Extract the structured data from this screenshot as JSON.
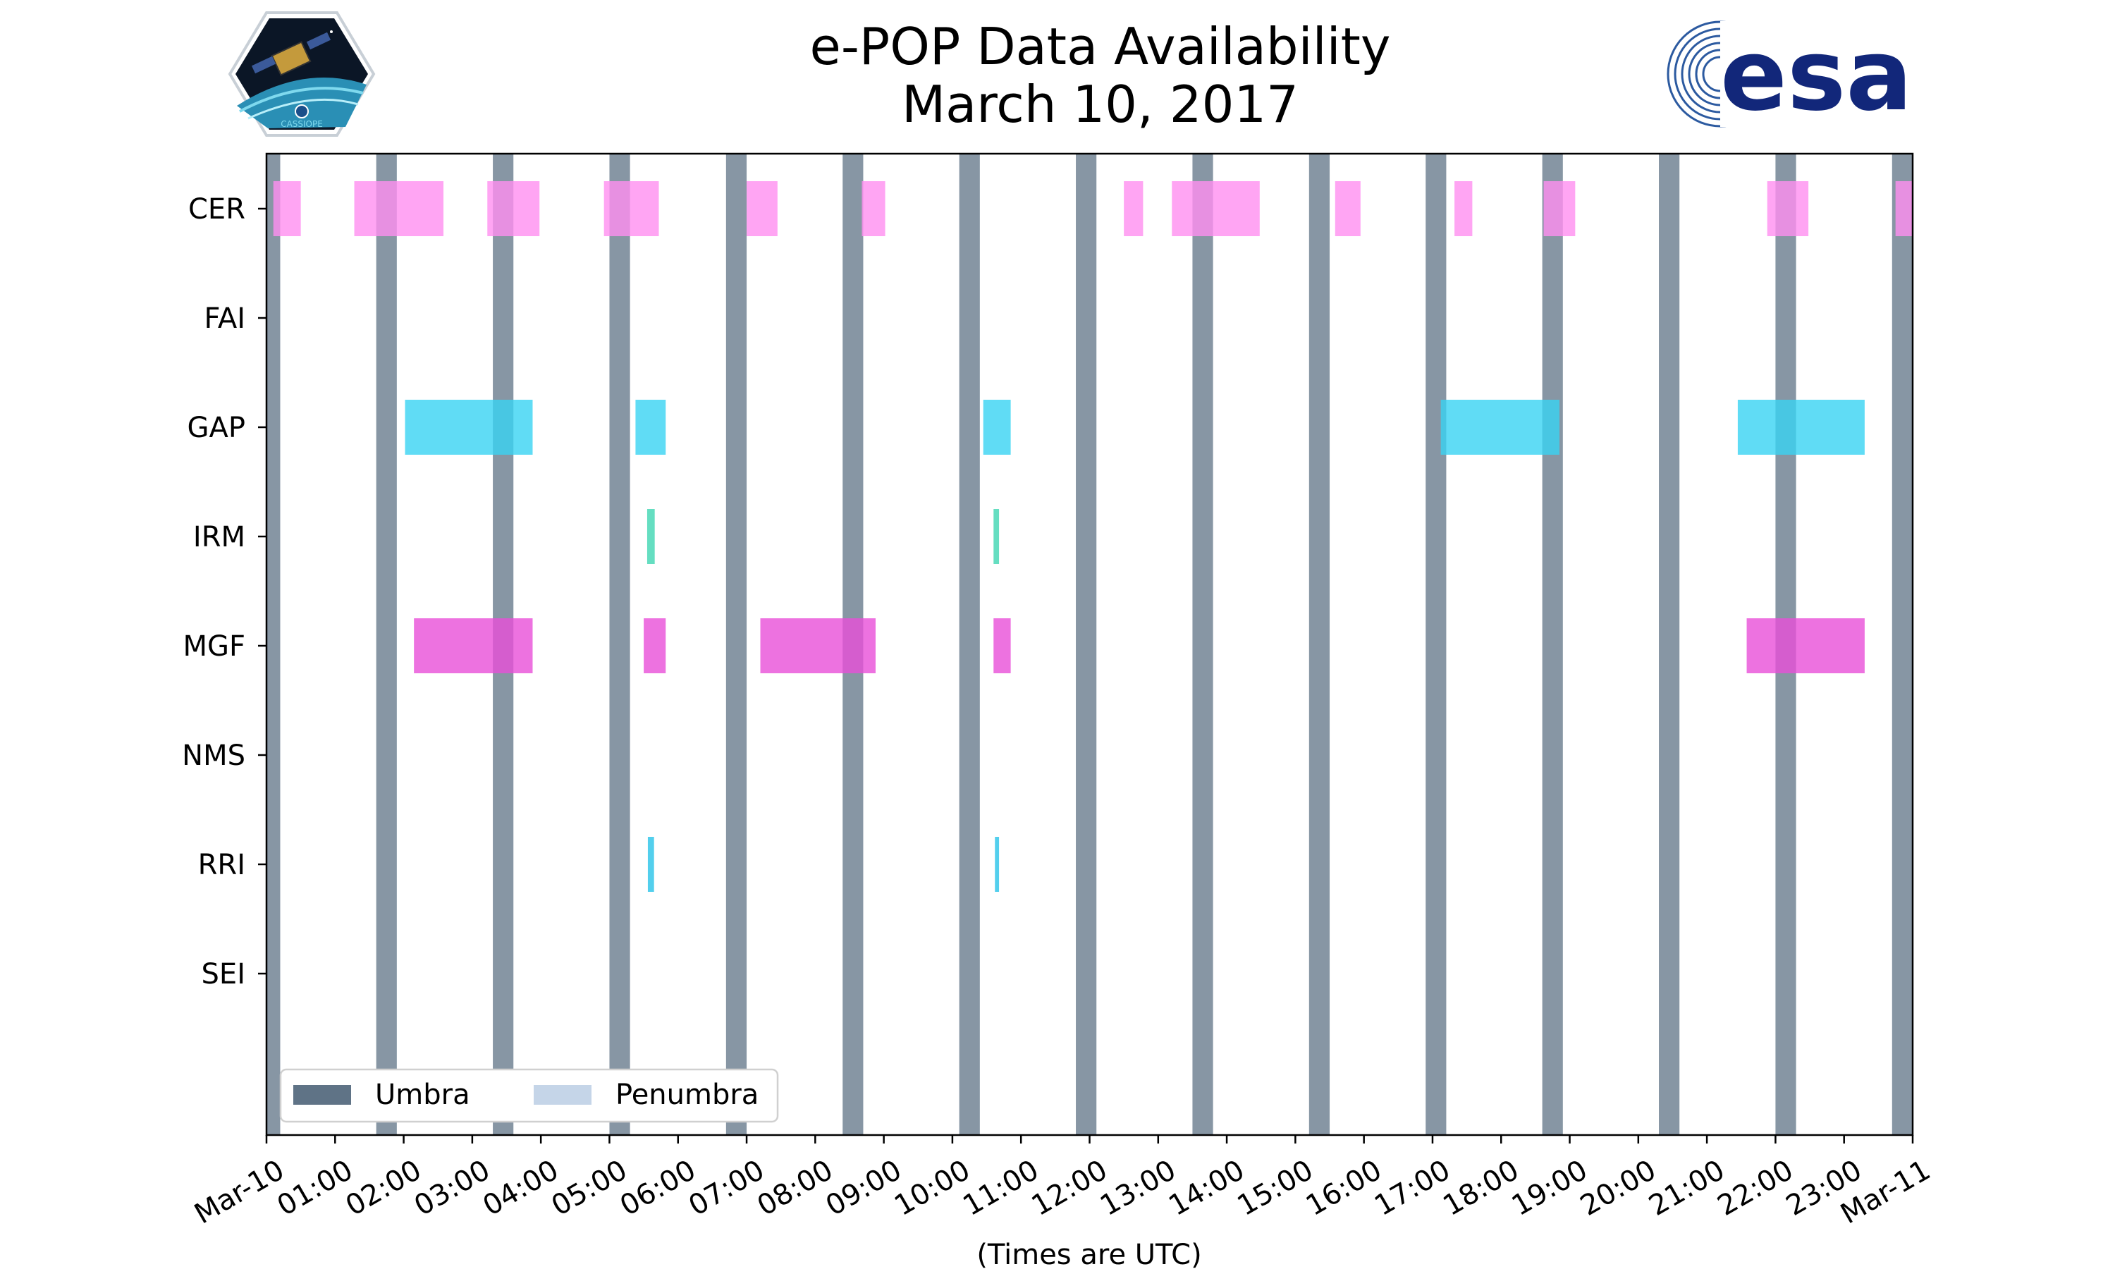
{
  "chart_data": {
    "type": "timeline",
    "title": "e-POP Data Availability",
    "subtitle": "March 10, 2017",
    "xlabel": "(Times are UTC)",
    "xlim_hours": [
      0,
      24
    ],
    "x_tick_labels": [
      "Mar-10",
      "01:00",
      "02:00",
      "03:00",
      "04:00",
      "05:00",
      "06:00",
      "07:00",
      "08:00",
      "09:00",
      "10:00",
      "11:00",
      "12:00",
      "13:00",
      "14:00",
      "15:00",
      "16:00",
      "17:00",
      "18:00",
      "19:00",
      "20:00",
      "21:00",
      "22:00",
      "23:00",
      "Mar-11"
    ],
    "instruments": [
      "CER",
      "FAI",
      "GAP",
      "IRM",
      "MGF",
      "NMS",
      "RRI",
      "SEI"
    ],
    "colors": {
      "umbra": "#5f7386",
      "penumbra": "#c5d5e8",
      "CER": "#ff8ef0",
      "GAP": "#38d3f2",
      "IRM": "#3ed6b2",
      "MGF": "#e84fd8",
      "RRI": "#28c3e8"
    },
    "umbra_hours": [
      [
        0.0,
        0.2
      ],
      [
        1.6,
        1.9
      ],
      [
        3.3,
        3.6
      ],
      [
        5.0,
        5.3
      ],
      [
        6.7,
        7.0
      ],
      [
        8.4,
        8.7
      ],
      [
        10.1,
        10.4
      ],
      [
        11.8,
        12.1
      ],
      [
        13.5,
        13.8
      ],
      [
        15.2,
        15.5
      ],
      [
        16.9,
        17.2
      ],
      [
        18.6,
        18.9
      ],
      [
        20.3,
        20.6
      ],
      [
        22.0,
        22.3
      ],
      [
        23.7,
        24.0
      ]
    ],
    "series": [
      {
        "name": "CER",
        "intervals": [
          [
            0.1,
            0.5
          ],
          [
            1.28,
            2.58
          ],
          [
            3.22,
            3.98
          ],
          [
            4.92,
            5.72
          ],
          [
            7.0,
            7.45
          ],
          [
            8.68,
            9.02
          ],
          [
            12.5,
            12.78
          ],
          [
            13.2,
            14.48
          ],
          [
            15.58,
            15.95
          ],
          [
            17.32,
            17.58
          ],
          [
            18.62,
            19.08
          ],
          [
            21.88,
            22.48
          ],
          [
            23.75,
            24.0
          ]
        ]
      },
      {
        "name": "FAI",
        "intervals": []
      },
      {
        "name": "GAP",
        "intervals": [
          [
            2.02,
            3.88
          ],
          [
            5.38,
            5.82
          ],
          [
            10.45,
            10.85
          ],
          [
            17.12,
            18.85
          ],
          [
            21.45,
            23.3
          ]
        ]
      },
      {
        "name": "IRM",
        "intervals": [
          [
            5.55,
            5.66
          ],
          [
            10.6,
            10.68
          ]
        ]
      },
      {
        "name": "MGF",
        "intervals": [
          [
            2.15,
            3.88
          ],
          [
            5.5,
            5.82
          ],
          [
            7.2,
            8.88
          ],
          [
            10.6,
            10.85
          ],
          [
            21.58,
            23.3
          ]
        ]
      },
      {
        "name": "NMS",
        "intervals": []
      },
      {
        "name": "RRI",
        "intervals": [
          [
            5.56,
            5.65
          ],
          [
            10.62,
            10.68
          ]
        ]
      },
      {
        "name": "SEI",
        "intervals": []
      }
    ],
    "legend": {
      "location": "lower-left",
      "entries": [
        "Umbra",
        "Penumbra"
      ]
    }
  },
  "logos": {
    "left": "CASSIOPE",
    "right": "esa"
  }
}
